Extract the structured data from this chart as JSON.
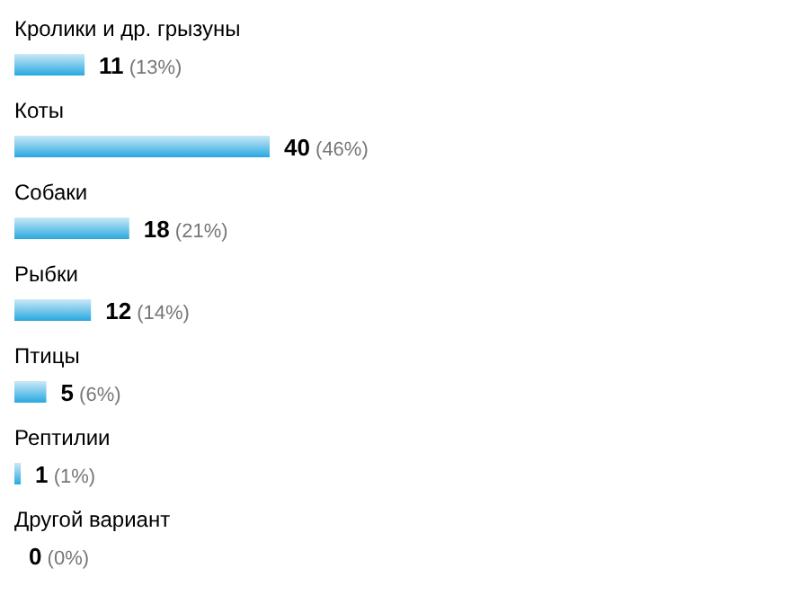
{
  "chart_data": {
    "type": "bar",
    "orientation": "horizontal",
    "categories": [
      "Кролики и др. грызуны",
      "Коты",
      "Собаки",
      "Рыбки",
      "Птицы",
      "Рептилии",
      "Другой вариант"
    ],
    "values": [
      11,
      40,
      18,
      12,
      5,
      1,
      0
    ],
    "value_labels": [
      "11 (13%)",
      "40 (46%)",
      "18 (21%)",
      "12 (14%)",
      "5 (6%)",
      "1 (1%)",
      "0 (0%)"
    ],
    "color": "#29a8e0"
  }
}
